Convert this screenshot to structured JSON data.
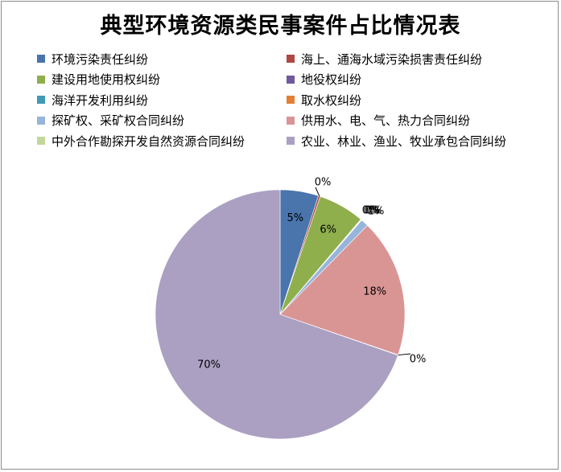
{
  "chart_data": {
    "type": "pie",
    "title": "典型环境资源类民事案件占比情况表",
    "legend_position": "top",
    "slices": [
      {
        "name": "环境污染责任纠纷",
        "value": 5,
        "label": "5%",
        "color": "#4a74ac"
      },
      {
        "name": "海上、通海水域污染损害责任纠纷",
        "value": 0.25,
        "label": "0%",
        "color": "#b04743"
      },
      {
        "name": "建设用地使用权纠纷",
        "value": 6,
        "label": "6%",
        "color": "#8faf4d"
      },
      {
        "name": "地役权纠纷",
        "value": 0.05,
        "label": "0%",
        "color": "#71589a"
      },
      {
        "name": "海洋开发利用纠纷",
        "value": 0.05,
        "label": "0%",
        "color": "#4299b5"
      },
      {
        "name": "取水权纠纷",
        "value": 0.05,
        "label": "0%",
        "color": "#e47f35"
      },
      {
        "name": "探矿权、采矿权合同纠纷",
        "value": 1,
        "label": "1%",
        "color": "#97b4dc"
      },
      {
        "name": "供用水、电、气、热力合同纠纷",
        "value": 18,
        "label": "18%",
        "color": "#d99594"
      },
      {
        "name": "中外合作勘探开发自然资源合同纠纷",
        "value": 0.05,
        "label": "0%",
        "color": "#c2d79b"
      },
      {
        "name": "农业、林业、渔业、牧业承包合同纠纷",
        "value": 70,
        "label": "70%",
        "color": "#aba0c2"
      }
    ]
  }
}
